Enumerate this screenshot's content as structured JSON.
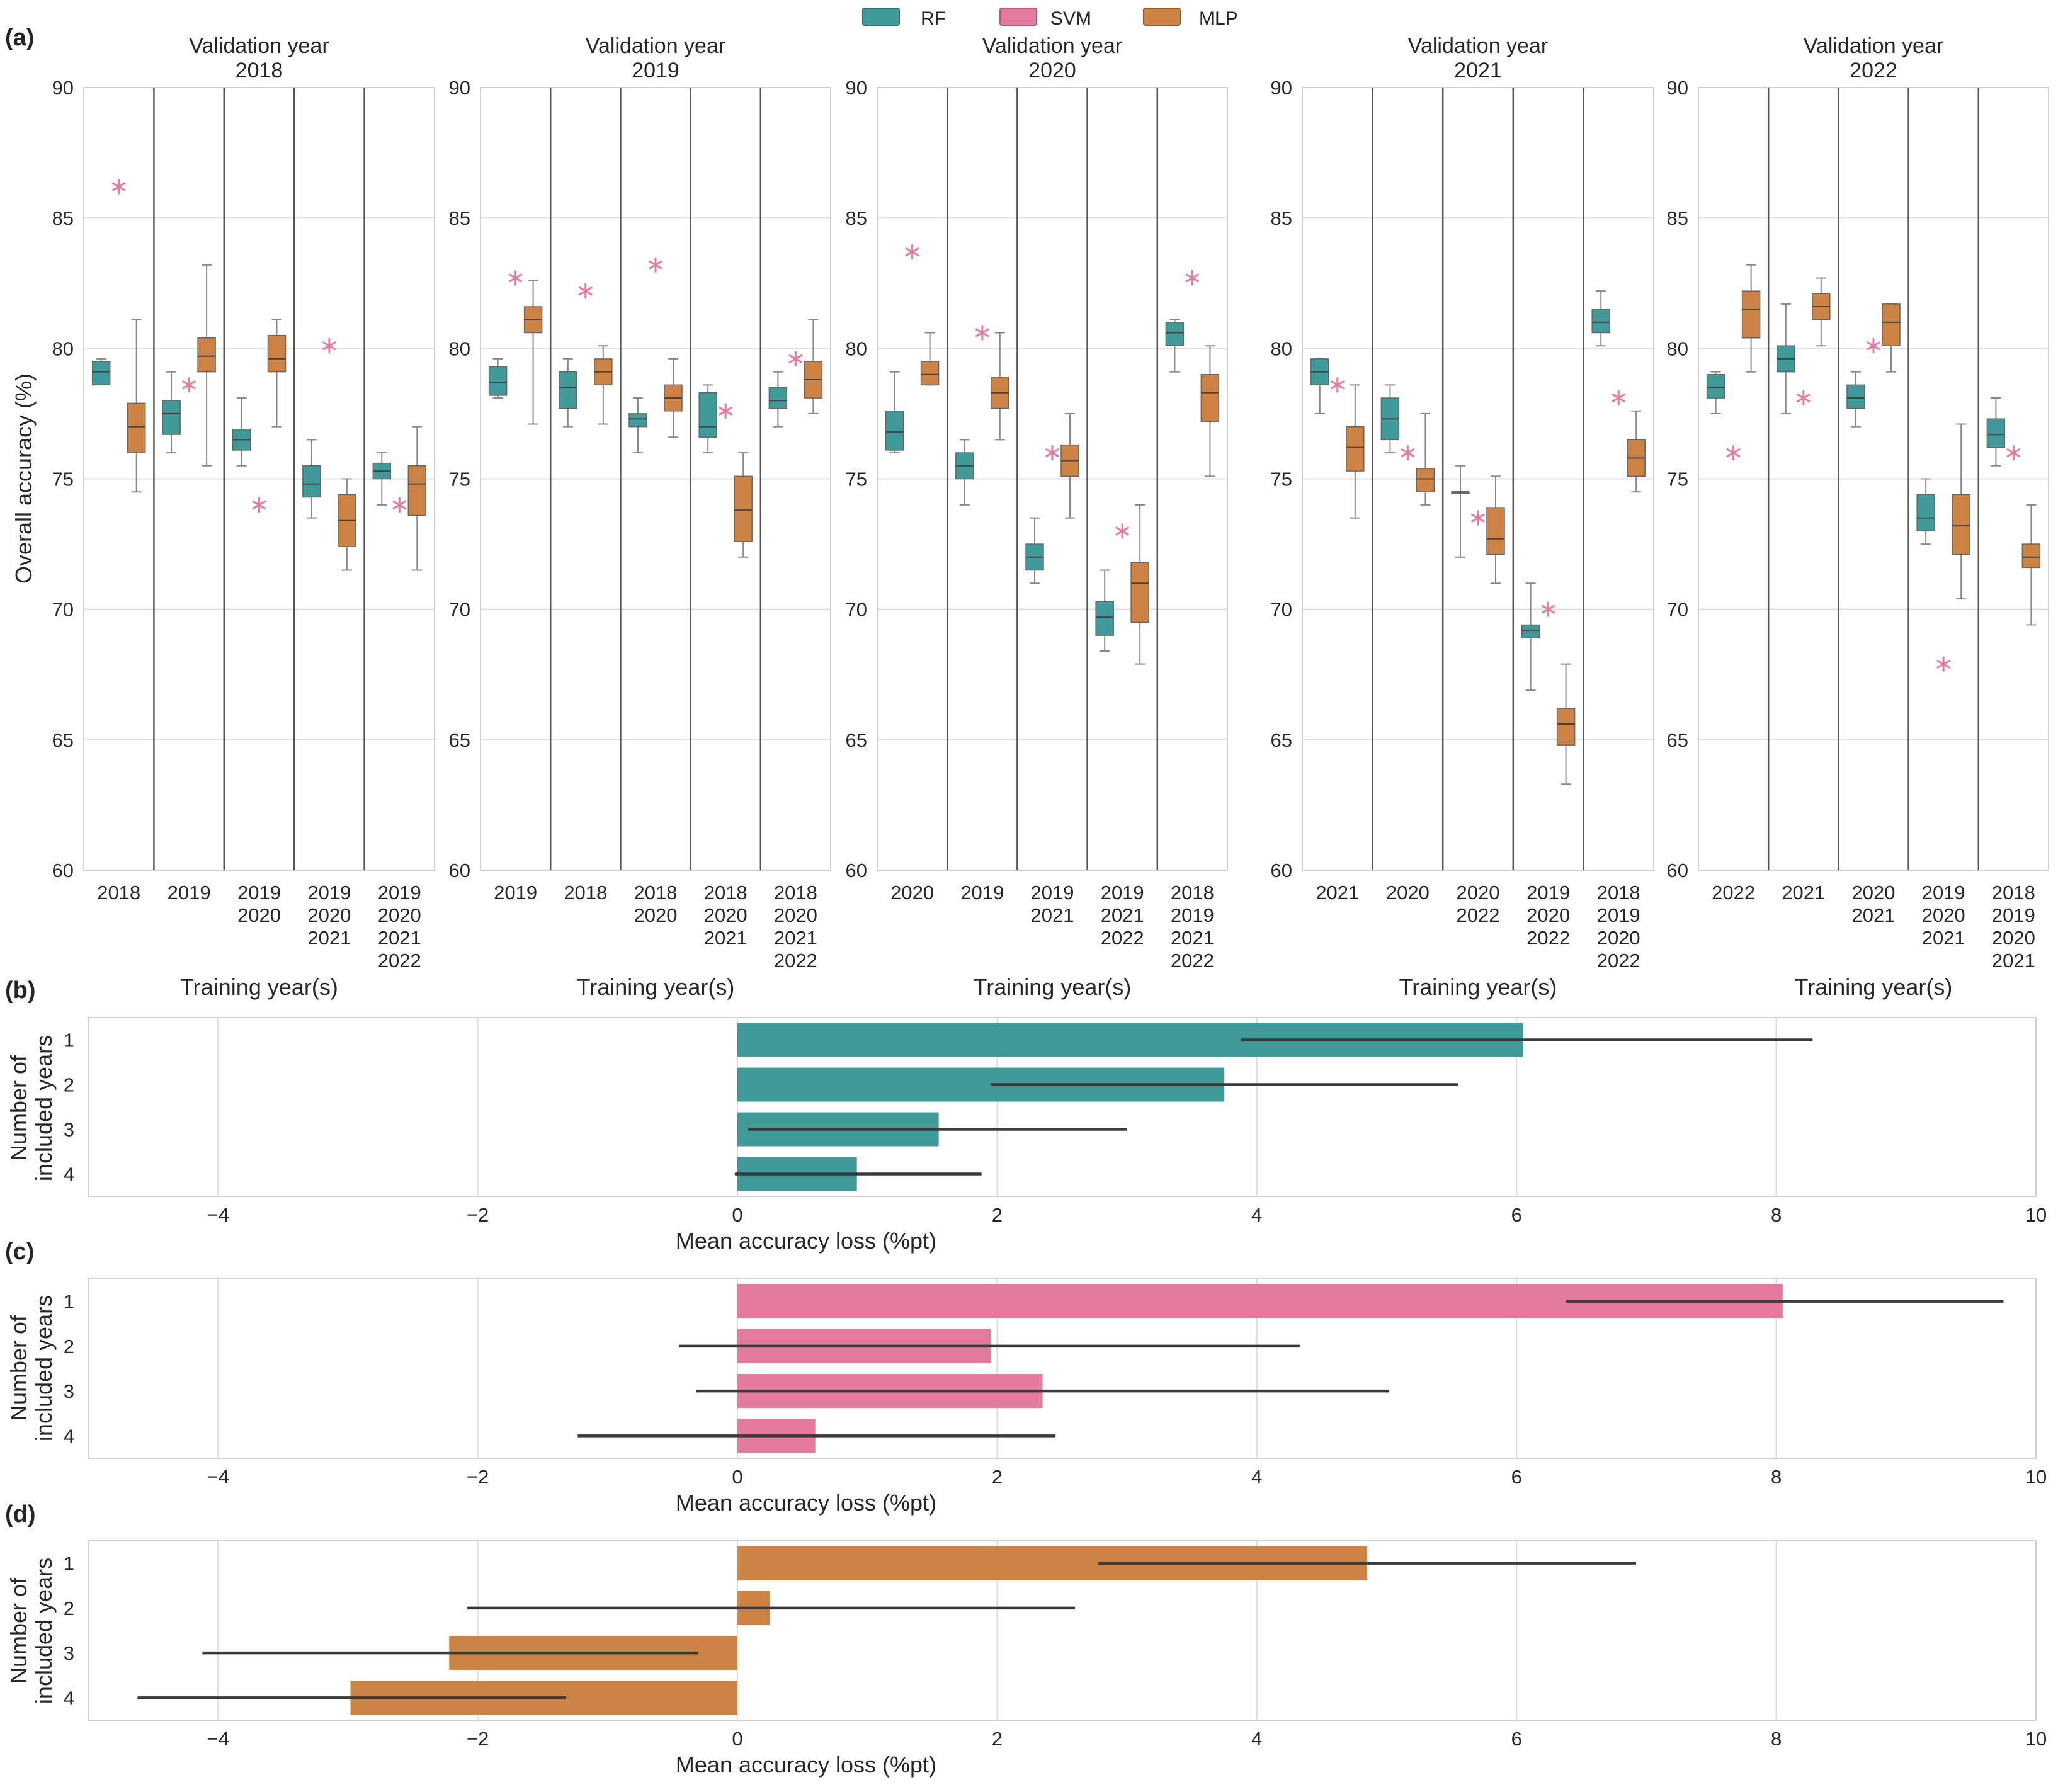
{
  "legend": {
    "items": [
      {
        "name": "RF",
        "color": "#3f9a99"
      },
      {
        "name": "SVM",
        "color": "#e57a9f"
      },
      {
        "name": "MLP",
        "color": "#cd8344"
      }
    ]
  },
  "colors": {
    "rf": "#3f9a99",
    "svm": "#e57a9f",
    "mlp": "#cd8344",
    "grid": "#dddddd",
    "axis": "#cfcfcf",
    "separator": "#555555"
  },
  "panel_letters": {
    "a": "(a)",
    "b": "(b)",
    "c": "(c)",
    "d": "(d)"
  },
  "chart_data": [
    {
      "id": "a",
      "type": "box",
      "ylabel": "Overall accuracy (%)",
      "xlabel": "Training year(s)",
      "ylim": [
        60,
        90
      ],
      "yticks": [
        60,
        65,
        70,
        75,
        80,
        85,
        90
      ],
      "grid": true,
      "subplots": [
        {
          "title": [
            "Validation year",
            "2018"
          ],
          "groups": [
            {
              "label": [
                "2018"
              ],
              "rf": [
                78.7,
                78.6,
                79.1,
                79.5,
                79.6
              ],
              "svm": 86.2,
              "mlp": [
                74.5,
                76.0,
                77.0,
                77.9,
                81.1
              ]
            },
            {
              "label": [
                "2019"
              ],
              "rf": [
                76.0,
                76.7,
                77.5,
                78.0,
                79.1
              ],
              "svm": 78.6,
              "mlp": [
                75.5,
                79.1,
                79.7,
                80.4,
                83.2
              ]
            },
            {
              "label": [
                "2019",
                "2020"
              ],
              "rf": [
                75.5,
                76.1,
                76.5,
                76.9,
                78.1
              ],
              "svm": 74.0,
              "mlp": [
                77.0,
                79.1,
                79.6,
                80.5,
                81.1
              ]
            },
            {
              "label": [
                "2019",
                "2020",
                "2021"
              ],
              "rf": [
                73.5,
                74.3,
                74.8,
                75.5,
                76.5
              ],
              "svm": 80.1,
              "mlp": [
                71.5,
                72.4,
                73.4,
                74.4,
                75.0
              ]
            },
            {
              "label": [
                "2019",
                "2020",
                "2021",
                "2022"
              ],
              "rf": [
                74.0,
                75.0,
                75.3,
                75.6,
                76.0
              ],
              "svm": 74.0,
              "mlp": [
                71.5,
                73.6,
                74.8,
                75.5,
                77.0
              ]
            }
          ]
        },
        {
          "title": [
            "Validation year",
            "2019"
          ],
          "groups": [
            {
              "label": [
                "2019"
              ],
              "rf": [
                78.1,
                78.2,
                78.7,
                79.3,
                79.6
              ],
              "svm": 82.7,
              "mlp": [
                77.1,
                80.6,
                81.1,
                81.6,
                82.6
              ]
            },
            {
              "label": [
                "2018"
              ],
              "rf": [
                77.0,
                77.7,
                78.5,
                79.1,
                79.6
              ],
              "svm": 82.2,
              "mlp": [
                77.1,
                78.6,
                79.1,
                79.6,
                80.1
              ]
            },
            {
              "label": [
                "2018",
                "2020"
              ],
              "rf": [
                76.0,
                77.0,
                77.3,
                77.5,
                78.1
              ],
              "svm": 83.2,
              "mlp": [
                76.6,
                77.6,
                78.1,
                78.6,
                79.6
              ]
            },
            {
              "label": [
                "2018",
                "2020",
                "2021"
              ],
              "rf": [
                76.0,
                76.6,
                77.0,
                78.3,
                78.6
              ],
              "svm": 77.6,
              "mlp": [
                72.0,
                72.6,
                73.8,
                75.1,
                76.0
              ]
            },
            {
              "label": [
                "2018",
                "2020",
                "2021",
                "2022"
              ],
              "rf": [
                77.0,
                77.7,
                78.0,
                78.5,
                79.1
              ],
              "svm": 79.6,
              "mlp": [
                77.5,
                78.1,
                78.8,
                79.5,
                81.1
              ]
            }
          ]
        },
        {
          "title": [
            "Validation year",
            "2020"
          ],
          "groups": [
            {
              "label": [
                "2020"
              ],
              "rf": [
                76.0,
                76.1,
                76.8,
                77.6,
                79.1
              ],
              "svm": 83.7,
              "mlp": [
                78.6,
                78.6,
                79.0,
                79.5,
                80.6
              ]
            },
            {
              "label": [
                "2019"
              ],
              "rf": [
                74.0,
                75.0,
                75.5,
                76.0,
                76.5
              ],
              "svm": 80.6,
              "mlp": [
                76.5,
                77.7,
                78.3,
                78.9,
                80.6
              ]
            },
            {
              "label": [
                "2019",
                "2021"
              ],
              "rf": [
                71.0,
                71.5,
                72.0,
                72.5,
                73.5
              ],
              "svm": 76.0,
              "mlp": [
                73.5,
                75.1,
                75.7,
                76.3,
                77.5
              ]
            },
            {
              "label": [
                "2019",
                "2021",
                "2022"
              ],
              "rf": [
                68.4,
                69.0,
                69.7,
                70.3,
                71.5
              ],
              "svm": 73.0,
              "mlp": [
                67.9,
                69.5,
                71.0,
                71.8,
                74.0
              ]
            },
            {
              "label": [
                "2018",
                "2019",
                "2021",
                "2022"
              ],
              "rf": [
                79.1,
                80.1,
                80.6,
                81.0,
                81.1
              ],
              "svm": 82.7,
              "mlp": [
                75.1,
                77.2,
                78.3,
                79.0,
                80.1
              ]
            }
          ]
        },
        {
          "title": [
            "Validation year",
            "2021"
          ],
          "groups": [
            {
              "label": [
                "2021"
              ],
              "rf": [
                77.5,
                78.6,
                79.1,
                79.6,
                79.6
              ],
              "svm": 78.6,
              "mlp": [
                73.5,
                75.3,
                76.2,
                77.0,
                78.6
              ]
            },
            {
              "label": [
                "2020"
              ],
              "rf": [
                76.0,
                76.5,
                77.3,
                78.1,
                78.6
              ],
              "svm": 76.0,
              "mlp": [
                74.0,
                74.5,
                75.0,
                75.4,
                77.5
              ]
            },
            {
              "label": [
                "2020",
                "2022"
              ],
              "rf": [
                72.0,
                74.5,
                74.5,
                74.5,
                75.5
              ],
              "svm": 73.5,
              "mlp": [
                71.0,
                72.1,
                72.7,
                73.9,
                75.1
              ]
            },
            {
              "label": [
                "2019",
                "2020",
                "2022"
              ],
              "rf": [
                66.9,
                68.9,
                69.2,
                69.4,
                71.0
              ],
              "svm": 70.0,
              "mlp": [
                63.3,
                64.8,
                65.6,
                66.2,
                67.9
              ]
            },
            {
              "label": [
                "2018",
                "2019",
                "2020",
                "2022"
              ],
              "rf": [
                80.1,
                80.6,
                81.0,
                81.5,
                82.2
              ],
              "svm": 78.1,
              "mlp": [
                74.5,
                75.1,
                75.8,
                76.5,
                77.6
              ]
            }
          ]
        },
        {
          "title": [
            "Validation year",
            "2022"
          ],
          "groups": [
            {
              "label": [
                "2022"
              ],
              "rf": [
                77.5,
                78.1,
                78.5,
                79.0,
                79.1
              ],
              "svm": 76.0,
              "mlp": [
                79.1,
                80.4,
                81.5,
                82.2,
                83.2
              ]
            },
            {
              "label": [
                "2021"
              ],
              "rf": [
                77.5,
                79.1,
                79.6,
                80.1,
                81.7
              ],
              "svm": 78.1,
              "mlp": [
                80.1,
                81.1,
                81.6,
                82.1,
                82.7
              ]
            },
            {
              "label": [
                "2020",
                "2021"
              ],
              "rf": [
                77.0,
                77.7,
                78.1,
                78.6,
                79.1
              ],
              "svm": 80.1,
              "mlp": [
                79.1,
                80.1,
                81.0,
                81.7,
                81.7
              ]
            },
            {
              "label": [
                "2019",
                "2020",
                "2021"
              ],
              "rf": [
                72.5,
                73.0,
                73.5,
                74.4,
                75.0
              ],
              "svm": 67.9,
              "mlp": [
                70.4,
                72.1,
                73.2,
                74.4,
                77.1
              ]
            },
            {
              "label": [
                "2018",
                "2019",
                "2020",
                "2021"
              ],
              "rf": [
                75.5,
                76.2,
                76.7,
                77.3,
                78.1
              ],
              "svm": 76.0,
              "mlp": [
                69.4,
                71.6,
                72.0,
                72.5,
                74.0
              ]
            }
          ]
        }
      ]
    },
    {
      "id": "b",
      "type": "barh",
      "model": "RF",
      "ylabel": [
        "Number of",
        "included years"
      ],
      "xlabel": "Mean accuracy loss (%pt)",
      "xlim": [
        -5,
        10
      ],
      "xticks": [
        -4,
        -2,
        0,
        2,
        4,
        6,
        8,
        10
      ],
      "categories": [
        "1",
        "2",
        "3",
        "4"
      ],
      "values": [
        6.05,
        3.75,
        1.55,
        0.92
      ],
      "ci": [
        [
          3.88,
          8.28
        ],
        [
          1.95,
          5.55
        ],
        [
          0.08,
          3.0
        ],
        [
          -0.02,
          1.88
        ]
      ]
    },
    {
      "id": "c",
      "type": "barh",
      "model": "SVM",
      "ylabel": [
        "Number of",
        "included years"
      ],
      "xlabel": "Mean accuracy loss (%pt)",
      "xlim": [
        -5,
        10
      ],
      "xticks": [
        -4,
        -2,
        0,
        2,
        4,
        6,
        8,
        10
      ],
      "categories": [
        "1",
        "2",
        "3",
        "4"
      ],
      "values": [
        8.05,
        1.95,
        2.35,
        0.6
      ],
      "ci": [
        [
          6.38,
          9.75
        ],
        [
          -0.45,
          4.33
        ],
        [
          -0.32,
          5.02
        ],
        [
          -1.23,
          2.45
        ]
      ]
    },
    {
      "id": "d",
      "type": "barh",
      "model": "MLP",
      "ylabel": [
        "Number of",
        "included years"
      ],
      "xlabel": "Mean accuracy loss (%pt)",
      "xlim": [
        -5,
        10
      ],
      "xticks": [
        -4,
        -2,
        0,
        2,
        4,
        6,
        8,
        10
      ],
      "categories": [
        "1",
        "2",
        "3",
        "4"
      ],
      "values": [
        4.85,
        0.25,
        -2.22,
        -2.98
      ],
      "ci": [
        [
          2.78,
          6.92
        ],
        [
          -2.08,
          2.6
        ],
        [
          -4.12,
          -0.3
        ],
        [
          -4.62,
          -1.32
        ]
      ]
    }
  ]
}
